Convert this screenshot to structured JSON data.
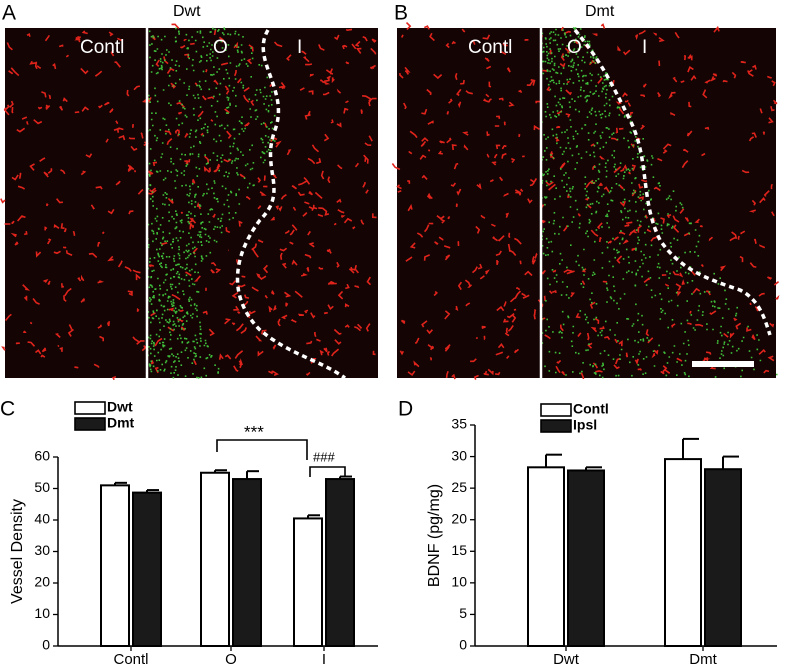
{
  "image_panels": [
    {
      "letter": "A",
      "title": "Dwt",
      "labels": [
        "Contl",
        "O",
        "I"
      ]
    },
    {
      "letter": "B",
      "title": "Dmt",
      "labels": [
        "Contl",
        "O",
        "I"
      ]
    }
  ],
  "chart_data": [
    {
      "type": "bar",
      "letter": "C",
      "ylabel": "Vessel Density",
      "categories": [
        "Contl",
        "O",
        "I"
      ],
      "series": [
        {
          "name": "Dwt",
          "color": "#ffffff",
          "values": [
            51,
            55,
            40.5
          ],
          "errors": [
            0.8,
            0.8,
            1
          ]
        },
        {
          "name": "Dmt",
          "color": "#1a1a1a",
          "values": [
            48.7,
            53,
            53
          ],
          "errors": [
            0.8,
            2.5,
            0.8
          ]
        }
      ],
      "ylim": [
        0,
        60
      ],
      "yticks": [
        0,
        10,
        20,
        30,
        40,
        50,
        60
      ],
      "annotations": [
        "***",
        "###"
      ]
    },
    {
      "type": "bar",
      "letter": "D",
      "ylabel": "BDNF (pg/mg)",
      "categories": [
        "Dwt",
        "Dmt"
      ],
      "series": [
        {
          "name": "Contl",
          "color": "#ffffff",
          "values": [
            28.3,
            29.6
          ],
          "errors": [
            2,
            3.2
          ]
        },
        {
          "name": "Ipsl",
          "color": "#1a1a1a",
          "values": [
            27.8,
            28
          ],
          "errors": [
            0.5,
            2
          ]
        }
      ],
      "ylim": [
        0,
        35
      ],
      "yticks": [
        0,
        5,
        10,
        15,
        20,
        25,
        30,
        35
      ]
    }
  ]
}
